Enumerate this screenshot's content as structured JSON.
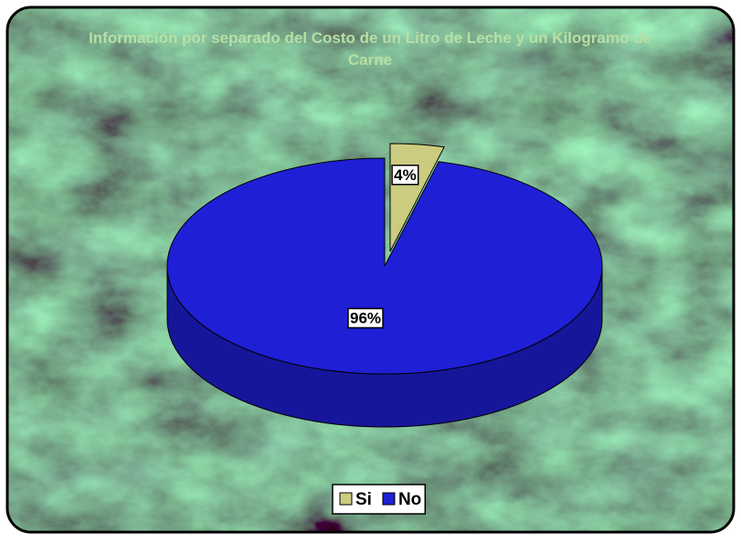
{
  "chart_data": {
    "type": "pie3d",
    "title": "Información por separado del Costo de un Litro de Leche y un Kilogramo de Carne",
    "categories": [
      "Si",
      "No"
    ],
    "values": [
      4,
      96
    ],
    "value_labels": [
      "4%",
      "96%"
    ],
    "colors": [
      "#cccc80",
      "#1f1fd6"
    ],
    "legend": "bottom"
  }
}
